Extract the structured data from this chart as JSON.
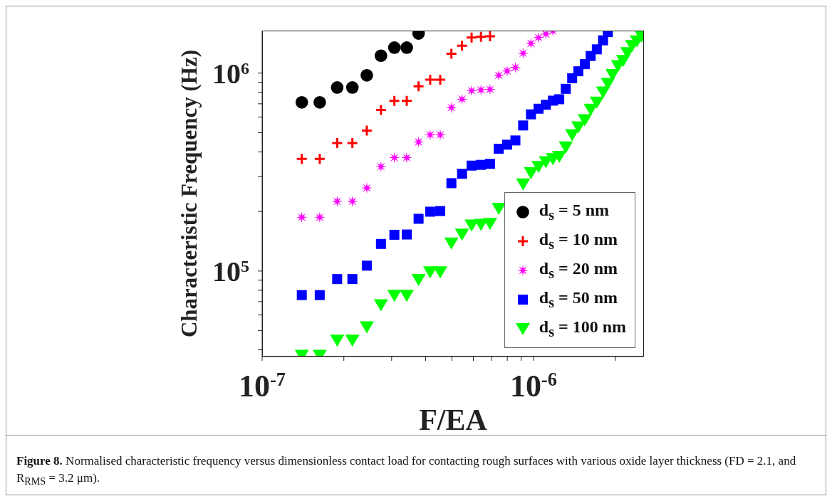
{
  "chart_data": {
    "type": "scatter",
    "xlabel": "F/EA",
    "ylabel": "Characteristic Frequency (Hz)",
    "annotations": [
      "Figure 8.",
      "Normalised characteristic frequency versus dimensionless contact load for contacting rough surfaces with various oxide layer thickness (FD = 2.1, and R$_{RMS}$ = 3.2 μm)."
    ],
    "log": "xy",
    "legend": "bottom right",
    "xlim": [
      1e-07,
      2.55e-06
    ],
    "ylim": [
      37000,
      1640000
    ],
    "xticks": [
      {
        "value": 1e-07,
        "label": "10$^{-7}$"
      },
      {
        "value": 2e-07,
        "label": null
      },
      {
        "value": 3e-07,
        "label": null
      },
      {
        "value": 4e-07,
        "label": null
      },
      {
        "value": 5e-07,
        "label": null
      },
      {
        "value": 6e-07,
        "label": null
      },
      {
        "value": 7e-07,
        "label": null
      },
      {
        "value": 8e-07,
        "label": null
      },
      {
        "value": 9e-07,
        "label": null
      },
      {
        "value": 1e-06,
        "label": "10$^{-6}$"
      },
      {
        "value": 2e-06,
        "label": null
      }
    ],
    "yticks": [
      {
        "value": 40000,
        "label": null
      },
      {
        "value": 50000,
        "label": null
      },
      {
        "value": 60000,
        "label": null
      },
      {
        "value": 70000,
        "label": null
      },
      {
        "value": 80000,
        "label": null
      },
      {
        "value": 90000,
        "label": null
      },
      {
        "value": 100000,
        "label": "10$^{5}$"
      },
      {
        "value": 200000,
        "label": null
      },
      {
        "value": 300000,
        "label": null
      },
      {
        "value": 400000,
        "label": null
      },
      {
        "value": 500000,
        "label": null
      },
      {
        "value": 600000,
        "label": null
      },
      {
        "value": 700000,
        "label": null
      },
      {
        "value": 800000,
        "label": null
      },
      {
        "value": 900000,
        "label": null
      },
      {
        "value": 1000000,
        "label": "10$^{6}$"
      }
    ],
    "series": [
      {
        "name": "d$_{s}$ = 5 nm",
        "color": "#000000",
        "marker": "circle",
        "x": [
          1.4e-07,
          1.63e-07,
          1.89e-07,
          2.15e-07,
          2.43e-07,
          2.74e-07,
          3.07e-07,
          3.41e-07,
          3.77e-07
        ],
        "values": [
          712000,
          712000,
          846000,
          846000,
          975000,
          1225000,
          1345000,
          1345000,
          1585000
        ]
      },
      {
        "name": "d$_{s}$ = 10 nm",
        "color": "#ff0000",
        "marker": "cross",
        "x": [
          1.4e-07,
          1.63e-07,
          1.89e-07,
          2.15e-07,
          2.43e-07,
          2.74e-07,
          3.07e-07,
          3.41e-07,
          3.77e-07,
          4.16e-07,
          4.53e-07,
          4.98e-07,
          5.45e-07,
          5.91e-07,
          6.4e-07,
          6.91e-07
        ],
        "values": [
          369000,
          369000,
          443000,
          443000,
          512000,
          652000,
          724000,
          724000,
          858000,
          926000,
          926000,
          1254000,
          1375000,
          1512000,
          1525000,
          1534000
        ]
      },
      {
        "name": "d$_{s}$ = 20 nm",
        "color": "#ff00ff",
        "marker": "star",
        "x": [
          1.4e-07,
          1.63e-07,
          1.89e-07,
          2.15e-07,
          2.43e-07,
          2.74e-07,
          3.07e-07,
          3.41e-07,
          3.77e-07,
          4.16e-07,
          4.53e-07,
          4.98e-07,
          5.45e-07,
          5.91e-07,
          6.4e-07,
          6.91e-07,
          7.44e-07,
          7.99e-07,
          8.57e-07,
          9.15e-07,
          9.78e-07,
          1.043e-06,
          1.11e-06,
          1.178e-06
        ],
        "values": [
          187000,
          187000,
          225000,
          225000,
          263000,
          337000,
          374000,
          374000,
          449000,
          488000,
          488000,
          670000,
          738000,
          816000,
          823000,
          828000,
          975000,
          1025000,
          1068000,
          1259000,
          1413000,
          1512000,
          1576000,
          1634000
        ]
      },
      {
        "name": "d$_{s}$ = 50 nm",
        "color": "#0000ff",
        "marker": "square",
        "x": [
          1.4e-07,
          1.63e-07,
          1.89e-07,
          2.15e-07,
          2.43e-07,
          2.74e-07,
          3.07e-07,
          3.41e-07,
          3.77e-07,
          4.16e-07,
          4.53e-07,
          4.98e-07,
          5.45e-07,
          5.91e-07,
          6.4e-07,
          6.91e-07,
          7.44e-07,
          7.99e-07,
          8.57e-07,
          9.15e-07,
          9.78e-07,
          1.043e-06,
          1.11e-06,
          1.178e-06,
          1.243e-06,
          1.314e-06,
          1.387e-06,
          1.462e-06,
          1.544e-06,
          1.623e-06,
          1.71e-06,
          1.803e-06,
          1.878e-06
        ],
        "values": [
          75600,
          75600,
          91100,
          91100,
          106500,
          137100,
          152500,
          153000,
          183700,
          199500,
          201000,
          278000,
          310000,
          341000,
          344000,
          348000,
          415000,
          435000,
          457000,
          544000,
          619000,
          661000,
          692000,
          726000,
          738000,
          833000,
          942000,
          1022000,
          1110000,
          1221000,
          1319000,
          1464000,
          1611000
        ]
      },
      {
        "name": "d$_{s}$ = 100 nm",
        "color": "#00ff00",
        "marker": "triangle",
        "x": [
          1.4e-07,
          1.63e-07,
          1.89e-07,
          2.15e-07,
          2.43e-07,
          2.74e-07,
          3.07e-07,
          3.41e-07,
          3.77e-07,
          4.16e-07,
          4.53e-07,
          4.98e-07,
          5.45e-07,
          5.91e-07,
          6.4e-07,
          6.91e-07,
          7.44e-07,
          7.99e-07,
          8.57e-07,
          9.15e-07,
          9.78e-07,
          1.043e-06,
          1.11e-06,
          1.178e-06,
          1.243e-06,
          1.314e-06,
          1.387e-06,
          1.462e-06,
          1.544e-06,
          1.623e-06,
          1.71e-06,
          1.803e-06,
          1.878e-06,
          1.953e-06,
          2.046e-06,
          2.137e-06,
          2.216e-06,
          2.307e-06,
          2.401e-06,
          2.5e-06
        ],
        "values": [
          37500,
          37500,
          44700,
          44700,
          52200,
          67400,
          75200,
          75200,
          90400,
          98900,
          98900,
          138400,
          153400,
          170300,
          172000,
          173500,
          207000,
          null,
          null,
          275000,
          313000,
          337000,
          356000,
          369000,
          379000,
          423000,
          488000,
          534000,
          580000,
          656000,
          712000,
          801000,
          886000,
          981000,
          1088000,
          1157000,
          1266000,
          1375000,
          1451000,
          1534000
        ]
      }
    ]
  }
}
